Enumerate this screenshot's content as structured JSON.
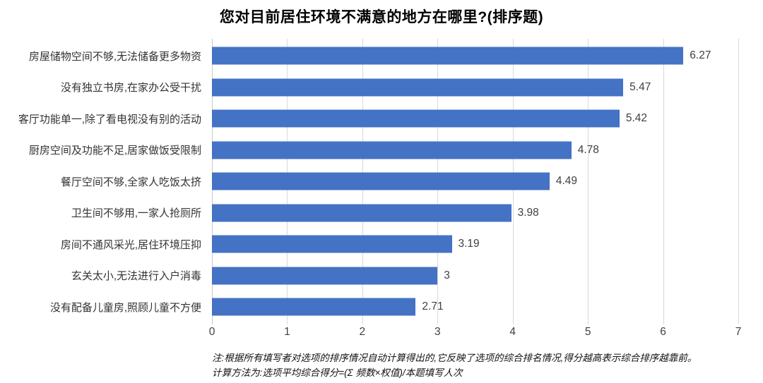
{
  "chart_data": {
    "type": "bar",
    "orientation": "horizontal",
    "title": "您对目前居住环境不满意的地方在哪里?(排序题)",
    "categories": [
      "房屋储物空间不够,无法储备更多物资",
      "没有独立书房,在家办公受干扰",
      "客厅功能单一,除了看电视没有别的活动",
      "厨房空间及功能不足,居家做饭受限制",
      "餐厅空间不够,全家人吃饭太挤",
      "卫生间不够用,一家人抢厕所",
      "房间不通风采光,居住环境压抑",
      "玄关太小,无法进行入户消毒",
      "没有配备儿童房,照顾儿童不方便"
    ],
    "values": [
      6.27,
      5.47,
      5.42,
      4.78,
      4.49,
      3.98,
      3.19,
      3,
      2.71
    ],
    "value_labels": [
      "6.27",
      "5.47",
      "5.42",
      "4.78",
      "4.49",
      "3.98",
      "3.19",
      "3",
      "2.71"
    ],
    "xlabel": "",
    "ylabel": "",
    "xlim": [
      0,
      7
    ],
    "x_ticks": [
      "0",
      "1",
      "2",
      "3",
      "4",
      "5",
      "6",
      "7"
    ],
    "grid": true,
    "legend": false,
    "bar_color": "#4472C4",
    "gridline_color": "#d9d9d9",
    "note_line1": "注:根据所有填写者对选项的排序情况自动计算得出的,它反映了选项的综合排名情况,得分越高表示综合排序越靠前。",
    "note_line2": "计算方法为:选项平均综合得分=(Σ 频数×权值)/本题填写人次"
  }
}
